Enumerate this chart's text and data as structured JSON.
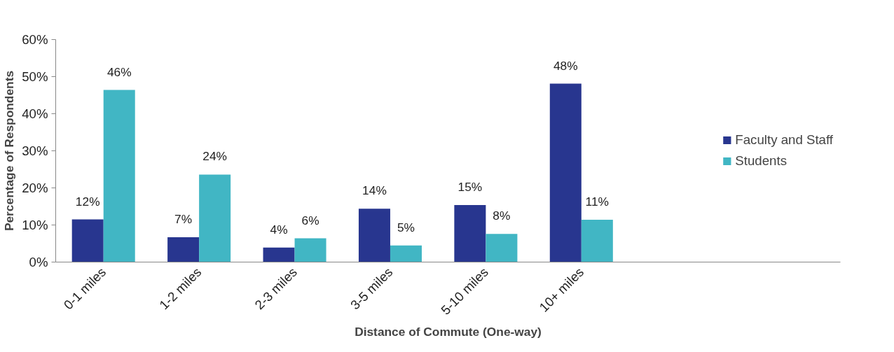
{
  "chart_data": {
    "type": "bar",
    "xlabel": "Distance of Commute (One-way)",
    "ylabel": "Percentage of Respondents",
    "categories": [
      "0-1 miles",
      "1-2 miles",
      "2-3 miles",
      "3-5 miles",
      "5-10 miles",
      "10+ miles"
    ],
    "series": [
      {
        "name": "Faculty and Staff",
        "color": "#28368f",
        "values": [
          11.5,
          6.7,
          3.9,
          14.4,
          15.4,
          48.1
        ],
        "value_labels": [
          "12%",
          "7%",
          "4%",
          "14%",
          "15%",
          "48%"
        ]
      },
      {
        "name": "Students",
        "color": "#41b6c4",
        "values": [
          46.4,
          23.6,
          6.4,
          4.5,
          7.6,
          11.4
        ],
        "value_labels": [
          "46%",
          "24%",
          "6%",
          "5%",
          "8%",
          "11%"
        ]
      }
    ],
    "ylim": [
      0,
      60
    ],
    "yticks": [
      {
        "value": 0,
        "label": "0%"
      },
      {
        "value": 10,
        "label": "10%"
      },
      {
        "value": 20,
        "label": "20%"
      },
      {
        "value": 30,
        "label": "30%"
      },
      {
        "value": 40,
        "label": "40%"
      },
      {
        "value": 50,
        "label": "50%"
      },
      {
        "value": 60,
        "label": "60%"
      }
    ],
    "legend": "right",
    "grid": false
  }
}
